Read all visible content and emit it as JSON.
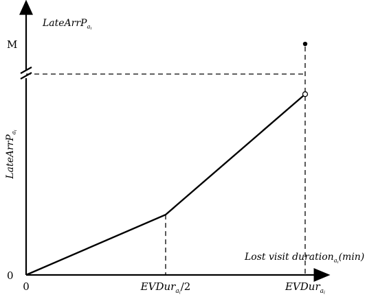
{
  "chart_data": {
    "type": "line",
    "x_axis_label": {
      "main": "Lost visit duration",
      "sub": "a",
      "subsub": "i",
      "unit": "(min)"
    },
    "y_axis_label_top": {
      "main": "LateArrP",
      "sub": "a",
      "subsub": "i"
    },
    "y_axis_label_side": {
      "main": "LateArrP",
      "sub": "a",
      "subsub": "i"
    },
    "x_ticks": [
      {
        "x": 0,
        "main": "0",
        "sub": "",
        "subsub": "",
        "suffix": ""
      },
      {
        "x": 0.5,
        "main": "EVDur",
        "sub": "a",
        "subsub": "i",
        "suffix": "/2"
      },
      {
        "x": 1,
        "main": "EVDur",
        "sub": "a",
        "subsub": "i",
        "suffix": ""
      }
    ],
    "y_ticks": [
      {
        "y": 0,
        "label": "0"
      },
      {
        "y": 1.15,
        "label": "M"
      }
    ],
    "series": [
      {
        "points": [
          {
            "x": 0,
            "y": 0
          },
          {
            "x": 0.5,
            "y": 0.3
          },
          {
            "x": 1,
            "y": 0.9
          }
        ]
      }
    ],
    "endpoint_open": {
      "x": 1,
      "y": 0.9
    },
    "endpoint_closed": {
      "x": 1,
      "y": 1.15
    },
    "axis_break_at": 1.0,
    "reference_level": 1.0,
    "xlim": [
      0,
      1.09
    ],
    "ylim": [
      0,
      1.37
    ],
    "grid": false
  }
}
